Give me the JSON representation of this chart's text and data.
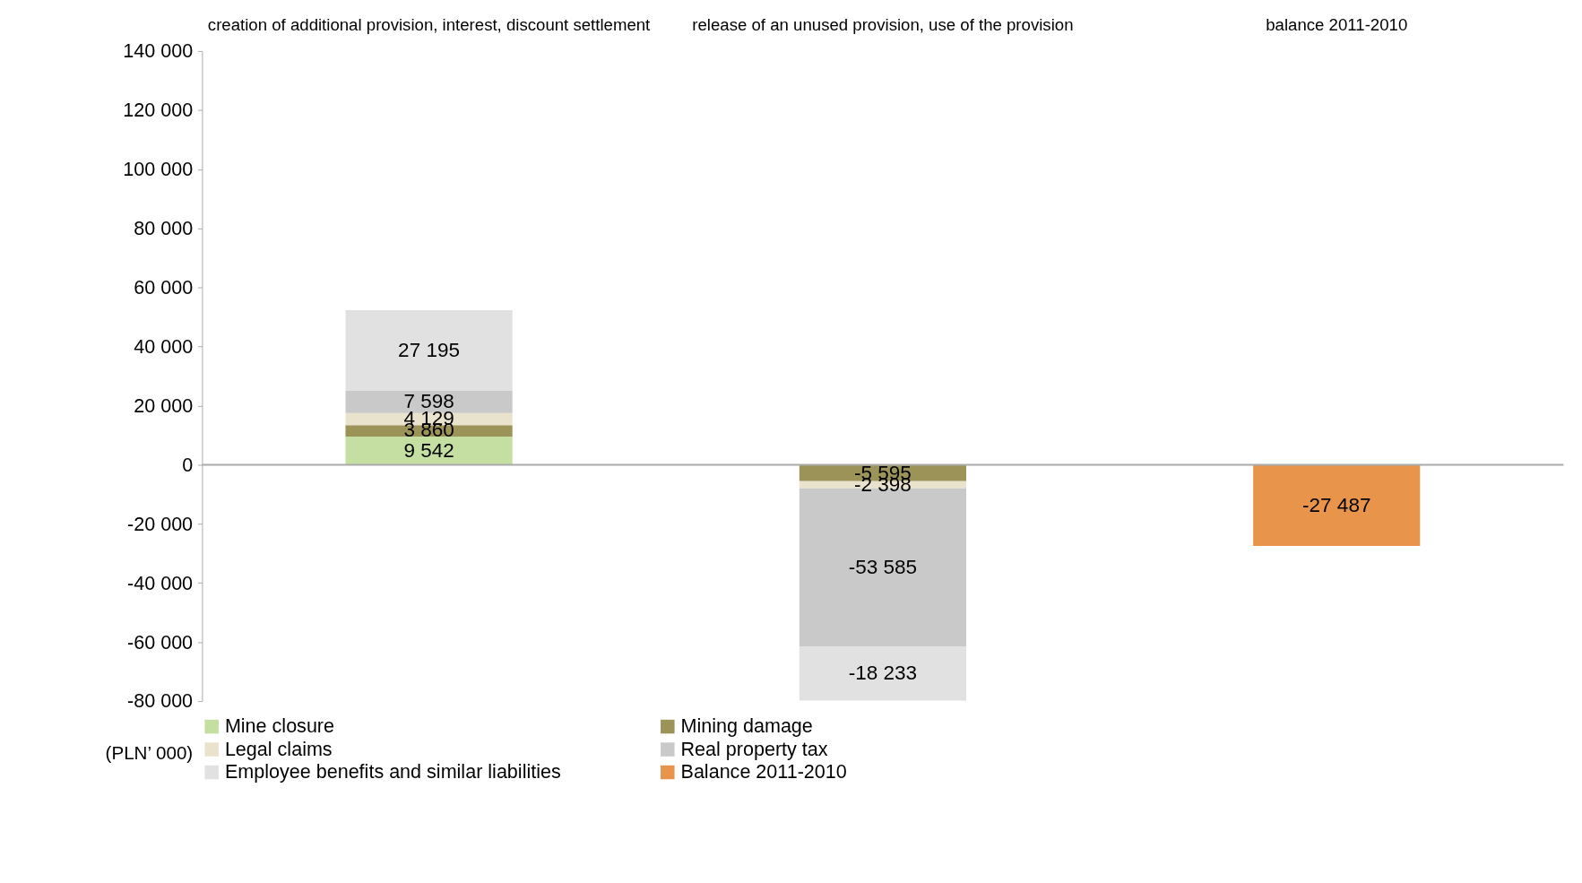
{
  "chart_data": {
    "type": "bar",
    "stacked": true,
    "categories": [
      "creation of additional provision, interest, discount settlement",
      "release of an unused  provision, use of the provision",
      "balance 2011-2010"
    ],
    "series": [
      {
        "name": "Mine closure",
        "color": "#c5dfa2",
        "values": [
          9542,
          null,
          null
        ],
        "value_labels": [
          "9 542",
          null,
          null
        ]
      },
      {
        "name": "Mining damage",
        "color": "#9b9358",
        "values": [
          3860,
          -5595,
          null
        ],
        "value_labels": [
          "3 860",
          "-5 595",
          null
        ]
      },
      {
        "name": "Legal claims",
        "color": "#e9e3cd",
        "values": [
          4129,
          -2398,
          null
        ],
        "value_labels": [
          "4 129",
          "-2 398",
          null
        ]
      },
      {
        "name": "Real property tax",
        "color": "#c9c9c9",
        "values": [
          7598,
          -53585,
          null
        ],
        "value_labels": [
          "7 598",
          "-53 585",
          null
        ]
      },
      {
        "name": "Employee benefits and similar liabilities",
        "color": "#e1e1e1",
        "values": [
          27195,
          -18233,
          null
        ],
        "value_labels": [
          "27 195",
          "-18 233",
          null
        ]
      },
      {
        "name": "Balance 2011-2010",
        "color": "#e8944a",
        "values": [
          null,
          null,
          -27487
        ],
        "value_labels": [
          null,
          null,
          "-27 487"
        ]
      }
    ],
    "ylim": [
      -80000,
      140000
    ],
    "yticks": [
      {
        "value": -80000,
        "label": "-80 000"
      },
      {
        "value": -60000,
        "label": "-60 000"
      },
      {
        "value": -40000,
        "label": "-40 000"
      },
      {
        "value": -20000,
        "label": "-20 000"
      },
      0,
      {
        "value": 20000,
        "label": "20 000"
      },
      {
        "value": 40000,
        "label": "40 000"
      },
      {
        "value": 60000,
        "label": "60 000"
      },
      {
        "value": 80000,
        "label": "80 000"
      },
      {
        "value": 100000,
        "label": "100 000"
      },
      {
        "value": 120000,
        "label": "120 000"
      },
      {
        "value": 140000,
        "label": "140 000"
      }
    ],
    "grid": false,
    "legend": "bottom",
    "ref_lines": [
      {
        "axis": "y",
        "value": 0,
        "color": "#aaaaaa"
      }
    ],
    "annotations": [
      "(PLN’ 000)"
    ]
  }
}
